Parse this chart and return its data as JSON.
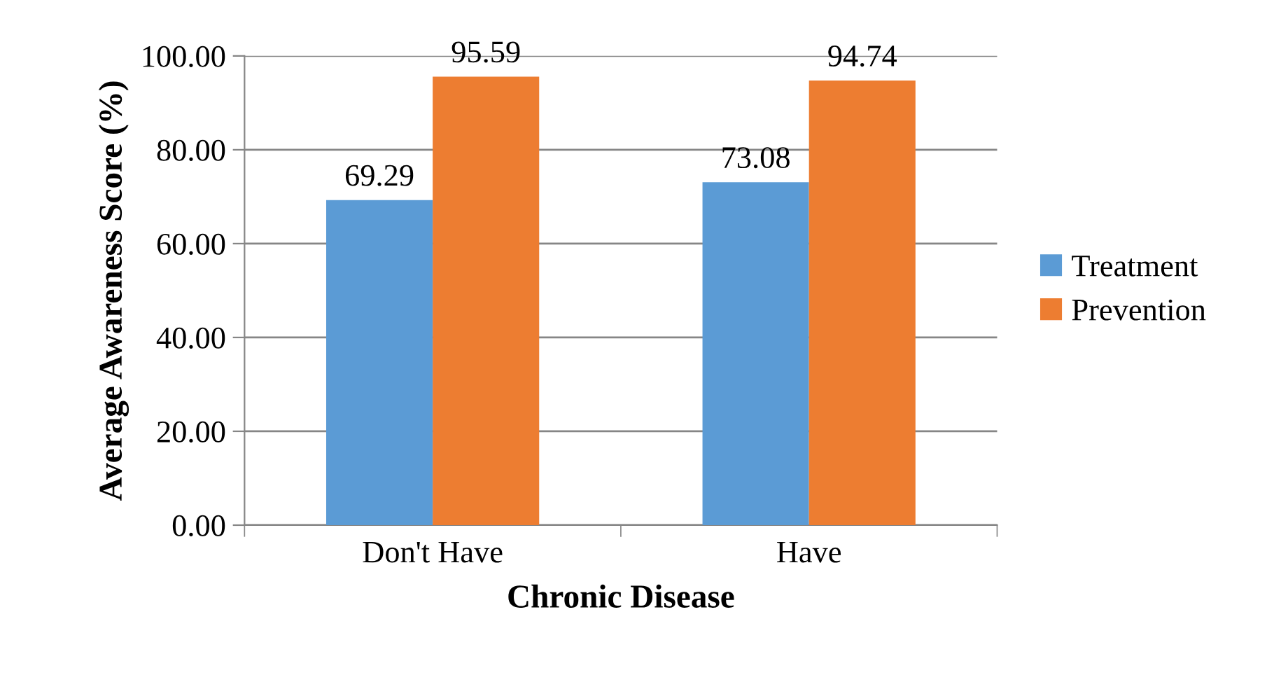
{
  "chart_data": {
    "type": "bar",
    "xlabel": "Chronic Disease",
    "ylabel": "Average Awareness Score (%)",
    "categories": [
      "Don't Have",
      "Have"
    ],
    "series": [
      {
        "name": "Treatment",
        "color": "#5b9bd5",
        "values": [
          69.29,
          73.08
        ]
      },
      {
        "name": "Prevention",
        "color": "#ed7d31",
        "values": [
          95.59,
          94.74
        ]
      }
    ],
    "ylim": [
      0,
      100
    ],
    "yticks": [
      {
        "value": 0,
        "label": "0.00"
      },
      {
        "value": 20,
        "label": "20.00"
      },
      {
        "value": 40,
        "label": "40.00"
      },
      {
        "value": 60,
        "label": "60.00"
      },
      {
        "value": 80,
        "label": "80.00"
      },
      {
        "value": 100,
        "label": "100.00"
      }
    ],
    "grid": "y",
    "legend": "right",
    "data_labels": true
  }
}
